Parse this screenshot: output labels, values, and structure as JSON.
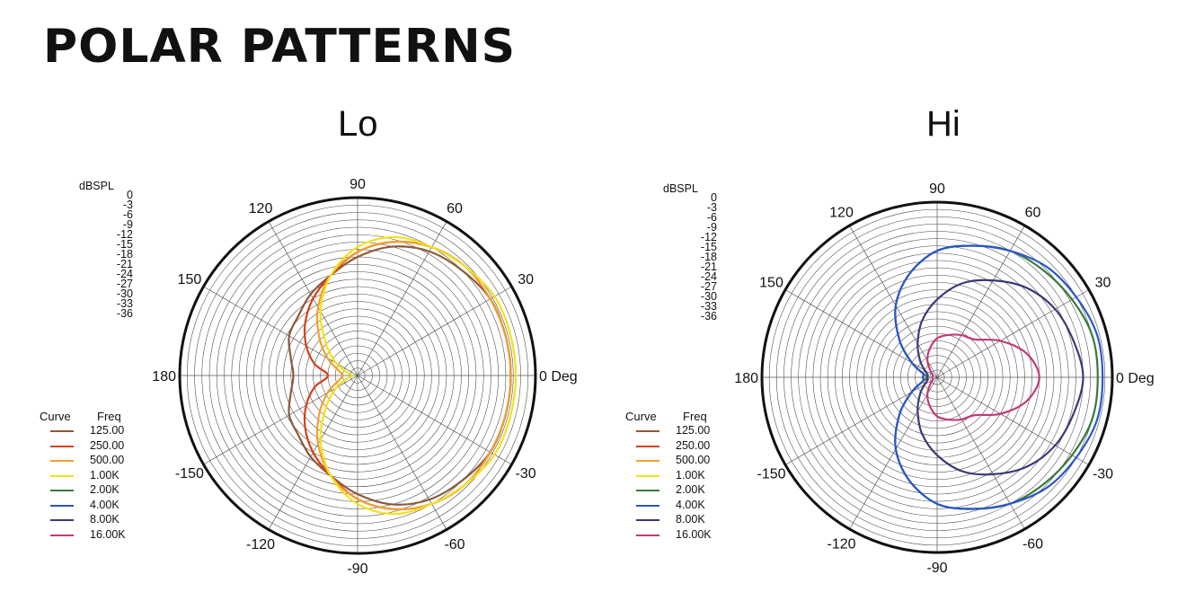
{
  "page_title": "POLAR PATTERNS",
  "chart_data": [
    {
      "type": "polar",
      "title": "Lo",
      "radial_label": "dBSPL",
      "radial_ticks": [
        "0",
        "-3",
        "-6",
        "-9",
        "-12",
        "-15",
        "-18",
        "-21",
        "-24",
        "-27",
        "-30",
        "-33",
        "-36"
      ],
      "rlim": [
        -36,
        0
      ],
      "angle_labels": [
        {
          "deg": 0,
          "text": "0 Deg"
        },
        {
          "deg": 30,
          "text": "30"
        },
        {
          "deg": 60,
          "text": "60"
        },
        {
          "deg": 90,
          "text": "90"
        },
        {
          "deg": 120,
          "text": "120"
        },
        {
          "deg": 150,
          "text": "150"
        },
        {
          "deg": 180,
          "text": "180"
        },
        {
          "deg": -150,
          "text": "-150"
        },
        {
          "deg": -120,
          "text": "-120"
        },
        {
          "deg": -90,
          "text": "-90"
        },
        {
          "deg": -60,
          "text": "-60"
        },
        {
          "deg": -30,
          "text": "-30"
        }
      ],
      "grid": true,
      "legend_header": {
        "curve": "Curve",
        "freq": "Freq"
      },
      "legend": [
        {
          "freq": "125.00",
          "color": "#8a5a3c"
        },
        {
          "freq": "250.00",
          "color": "#d4401c"
        },
        {
          "freq": "500.00",
          "color": "#f0a030"
        },
        {
          "freq": "1.00K",
          "color": "#f2e21a"
        },
        {
          "freq": "2.00K",
          "color": "#3a7a3a"
        },
        {
          "freq": "4.00K",
          "color": "#2a56c8"
        },
        {
          "freq": "8.00K",
          "color": "#3a3a78"
        },
        {
          "freq": "16.00K",
          "color": "#c03a78"
        }
      ],
      "angles_deg": [
        0,
        15,
        30,
        45,
        60,
        75,
        90,
        105,
        120,
        135,
        150,
        165,
        180,
        -165,
        -150,
        -135,
        -120,
        -105,
        -90,
        -75,
        -60,
        -45,
        -30,
        -15
      ],
      "series": [
        {
          "freq": "125.00",
          "color": "#8a5a3c",
          "values": [
            -5,
            -5,
            -5,
            -6,
            -7,
            -9,
            -12,
            -15,
            -17,
            -19,
            -20,
            -22,
            -23,
            -22,
            -20,
            -19,
            -17,
            -15,
            -12,
            -9,
            -7,
            -6,
            -5,
            -5
          ]
        },
        {
          "freq": "250.00",
          "color": "#d4401c",
          "values": [
            -5,
            -5,
            -5,
            -5,
            -6,
            -8,
            -11,
            -15,
            -18,
            -21,
            -24,
            -27,
            -30,
            -27,
            -24,
            -21,
            -18,
            -15,
            -11,
            -8,
            -6,
            -5,
            -5,
            -5
          ]
        },
        {
          "freq": "500.00",
          "color": "#f0a030",
          "values": [
            -5,
            -5,
            -5,
            -5,
            -6,
            -8,
            -11,
            -15,
            -20,
            -25,
            -29,
            -32,
            -33,
            -32,
            -29,
            -25,
            -20,
            -15,
            -11,
            -8,
            -6,
            -5,
            -5,
            -5
          ]
        },
        {
          "freq": "1.00K",
          "color": "#f2e21a",
          "values": [
            -4,
            -4,
            -4,
            -5,
            -6,
            -7,
            -10,
            -15,
            -21,
            -27,
            -31,
            -34,
            -35,
            -34,
            -31,
            -27,
            -21,
            -15,
            -10,
            -7,
            -6,
            -5,
            -4,
            -4
          ]
        }
      ]
    },
    {
      "type": "polar",
      "title": "Hi",
      "radial_label": "dBSPL",
      "radial_ticks": [
        "0",
        "-3",
        "-6",
        "-9",
        "-12",
        "-15",
        "-18",
        "-21",
        "-24",
        "-27",
        "-30",
        "-33",
        "-36"
      ],
      "rlim": [
        -36,
        0
      ],
      "angle_labels": [
        {
          "deg": 0,
          "text": "0 Deg"
        },
        {
          "deg": 30,
          "text": "30"
        },
        {
          "deg": 60,
          "text": "60"
        },
        {
          "deg": 90,
          "text": "90"
        },
        {
          "deg": 120,
          "text": "120"
        },
        {
          "deg": 150,
          "text": "150"
        },
        {
          "deg": 180,
          "text": "180"
        },
        {
          "deg": -150,
          "text": "-150"
        },
        {
          "deg": -120,
          "text": "-120"
        },
        {
          "deg": -90,
          "text": "-90"
        },
        {
          "deg": -60,
          "text": "-60"
        },
        {
          "deg": -30,
          "text": "-30"
        }
      ],
      "grid": true,
      "legend_header": {
        "curve": "Curve",
        "freq": "Freq"
      },
      "legend": [
        {
          "freq": "125.00",
          "color": "#8a5a3c"
        },
        {
          "freq": "250.00",
          "color": "#d4401c"
        },
        {
          "freq": "500.00",
          "color": "#f0a030"
        },
        {
          "freq": "1.00K",
          "color": "#f2e21a"
        },
        {
          "freq": "2.00K",
          "color": "#3a7a3a"
        },
        {
          "freq": "4.00K",
          "color": "#2a56c8"
        },
        {
          "freq": "8.00K",
          "color": "#3a3a78"
        },
        {
          "freq": "16.00K",
          "color": "#c03a78"
        }
      ],
      "angles_deg": [
        0,
        15,
        30,
        45,
        60,
        75,
        90,
        105,
        120,
        135,
        150,
        165,
        180,
        -165,
        -150,
        -135,
        -120,
        -105,
        -90,
        -75,
        -60,
        -45,
        -30,
        -15
      ],
      "series": [
        {
          "freq": "2.00K",
          "color": "#3a7a3a",
          "values": [
            -3,
            -3,
            -4,
            -5,
            -6,
            -8,
            -10,
            -14,
            -19,
            -25,
            -30,
            -33,
            -34,
            -33,
            -30,
            -25,
            -19,
            -14,
            -10,
            -8,
            -6,
            -5,
            -4,
            -3
          ]
        },
        {
          "freq": "4.00K",
          "color": "#2a56c8",
          "values": [
            -2,
            -2,
            -3,
            -4,
            -6,
            -8,
            -10,
            -14,
            -19,
            -25,
            -30,
            -33,
            -33,
            -33,
            -30,
            -25,
            -19,
            -14,
            -10,
            -8,
            -6,
            -4,
            -3,
            -2
          ]
        },
        {
          "freq": "8.00K",
          "color": "#3a3a78",
          "values": [
            -6,
            -7,
            -8,
            -10,
            -13,
            -16,
            -20,
            -24,
            -28,
            -31,
            -33,
            -34,
            -34,
            -34,
            -33,
            -31,
            -28,
            -24,
            -20,
            -16,
            -13,
            -10,
            -8,
            -7
          ]
        },
        {
          "freq": "16.00K",
          "color": "#c03a78",
          "values": [
            -15,
            -17,
            -21,
            -25,
            -26,
            -27,
            -28,
            -30,
            -32,
            -34,
            -35,
            -35,
            -35,
            -35,
            -35,
            -34,
            -32,
            -30,
            -28,
            -27,
            -26,
            -25,
            -21,
            -17
          ]
        }
      ]
    }
  ]
}
